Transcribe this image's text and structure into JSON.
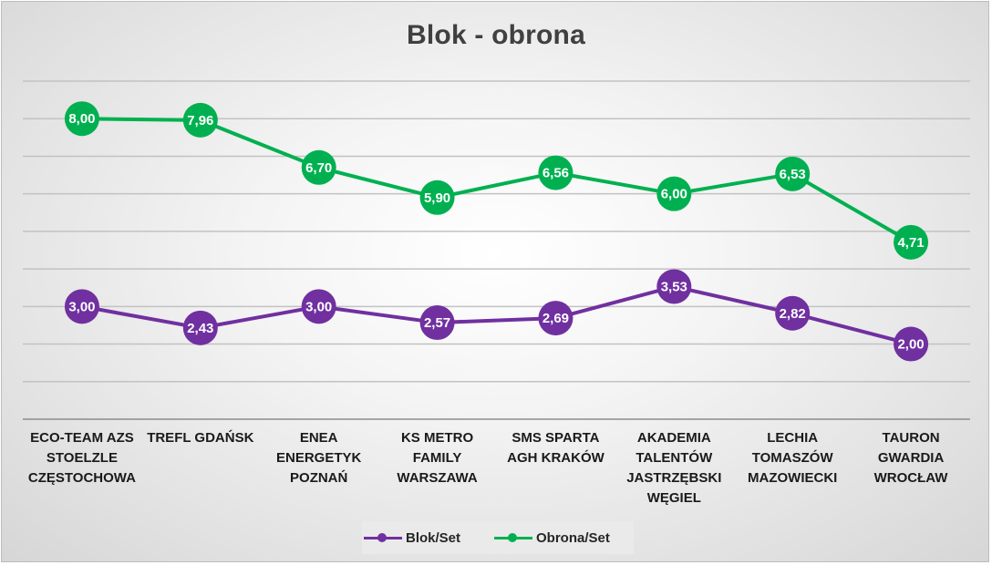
{
  "chart_data": {
    "type": "line",
    "title": "Blok - obrona",
    "categories": [
      "ECO-TEAM AZS\nSTOELZLE\nCZĘSTOCHOWA",
      "TREFL GDAŃSK",
      "ENEA\nENERGETYK\nPOZNAŃ",
      "KS METRO\nFAMILY\nWARSZAWA",
      "SMS SPARTA\nAGH KRAKÓW",
      "AKADEMIA\nTALENTÓW\nJASTRZĘBSKI\nWĘGIEL",
      "LECHIA\nTOMASZÓW\nMAZOWIECKI",
      "TAURON\nGWARDIA\nWROCŁAW"
    ],
    "series": [
      {
        "name": "Blok/Set",
        "color": "#7030a0",
        "values": [
          3.0,
          2.43,
          3.0,
          2.57,
          2.69,
          3.53,
          2.82,
          2.0
        ],
        "labels": [
          "3,00",
          "2,43",
          "3,00",
          "2,57",
          "2,69",
          "3,53",
          "2,82",
          "2,00"
        ]
      },
      {
        "name": "Obrona/Set",
        "color": "#00b050",
        "values": [
          8.0,
          7.96,
          6.7,
          5.9,
          6.56,
          6.0,
          6.53,
          4.71
        ],
        "labels": [
          "8,00",
          "7,96",
          "6,70",
          "5,90",
          "6,56",
          "6,00",
          "6,53",
          "4,71"
        ]
      }
    ],
    "ylim": [
      0,
      9
    ],
    "grid": true,
    "show_y_axis_labels": false,
    "legend_position": "bottom"
  }
}
